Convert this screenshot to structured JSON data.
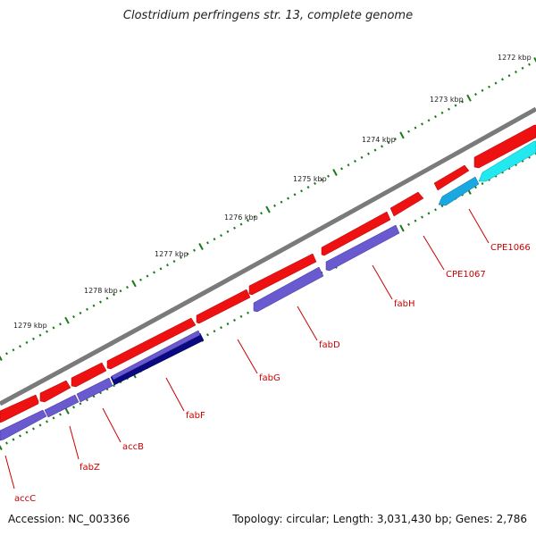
{
  "title": "Clostridium perfringens str. 13, complete genome",
  "footer": {
    "accession": "Accession: NC_003366",
    "summary": "Topology: circular; Length: 3,031,430 bp; Genes: 2,786"
  },
  "colors": {
    "backbone": "#7a7a7a",
    "cds_forward": "#ee1111",
    "cds_reverse": "#6a5ad0",
    "cds_dark": "#0a0a80",
    "cds_cyan": "#22e8f0",
    "cds_blue": "#1aa8e0",
    "tick": "#1a7a1a",
    "label": "#cc0000"
  },
  "kbp_labels": [
    "1272 kbp",
    "1273 kbp",
    "1274 kbp",
    "1275 kbp",
    "1276 kbp",
    "1277 kbp",
    "1278 kbp",
    "1279 kbp"
  ],
  "gene_labels": [
    "CPE1066",
    "CPE1067",
    "fabH",
    "fabD",
    "fabG",
    "fabF",
    "accB",
    "fabZ",
    "accC"
  ]
}
